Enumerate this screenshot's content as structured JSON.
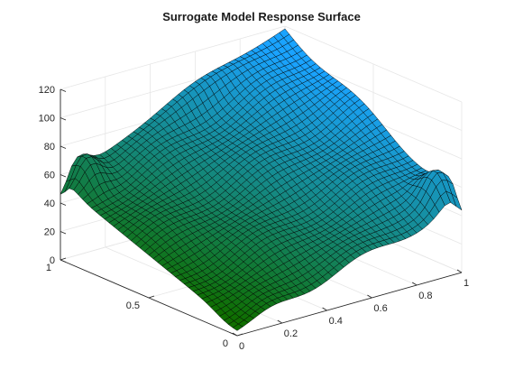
{
  "chart_data": {
    "type": "surface",
    "title": "Surrogate Model Response Surface",
    "xlabel": "",
    "ylabel": "",
    "zlabel": "",
    "xlim": [
      0,
      1
    ],
    "ylim": [
      0,
      1
    ],
    "zlim": [
      0,
      120
    ],
    "x_ticks": [
      "0",
      "0.2",
      "0.4",
      "0.6",
      "0.8",
      "1"
    ],
    "x_tick_values": [
      0,
      0.2,
      0.4,
      0.6,
      0.8,
      1
    ],
    "y_ticks": [
      "0",
      "0.5",
      "1"
    ],
    "y_tick_values": [
      0,
      0.5,
      1
    ],
    "z_ticks": [
      "0",
      "20",
      "40",
      "60",
      "80",
      "100",
      "120"
    ],
    "z_tick_values": [
      0,
      20,
      40,
      60,
      80,
      100,
      120
    ],
    "grid": true,
    "colormap": [
      "#0f6e00",
      "#1aa3ff"
    ],
    "edge_color": "#000000",
    "approx_values": [
      {
        "x": 0,
        "y": 0,
        "z": 2
      },
      {
        "x": 1,
        "y": 0,
        "z": 45
      },
      {
        "x": 0,
        "y": 1,
        "z": 52
      },
      {
        "x": 1,
        "y": 1,
        "z": 112
      },
      {
        "x": 0.5,
        "y": 0.5,
        "z": 50
      }
    ]
  }
}
